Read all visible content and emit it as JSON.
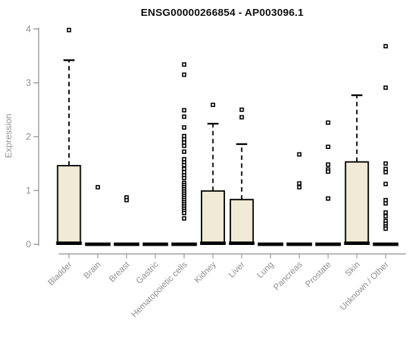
{
  "chart_data": {
    "type": "box",
    "title": "ENSG00000266854 - AP003096.1",
    "ylabel": "Expression",
    "xlabel": "",
    "ylim": [
      0,
      4
    ],
    "yticks": [
      0,
      1,
      2,
      3,
      4
    ],
    "grid": false,
    "legend": "none",
    "categories": [
      "Bladder",
      "Brain",
      "Breast",
      "Gastric",
      "Hematopoietic cells",
      "Kidney",
      "Liver",
      "Lung",
      "Pancreas",
      "Prostate",
      "Skin",
      "Unknown / Other"
    ],
    "boxes": [
      {
        "category": "Bladder",
        "q1": 0,
        "median": 0.02,
        "q3": 1.46,
        "whisker_low": 0,
        "whisker_high": 3.42,
        "outliers": [
          3.98
        ]
      },
      {
        "category": "Brain",
        "q1": 0,
        "median": 0,
        "q3": 0,
        "whisker_low": 0,
        "whisker_high": 0,
        "outliers": [
          1.06
        ]
      },
      {
        "category": "Breast",
        "q1": 0,
        "median": 0,
        "q3": 0,
        "whisker_low": 0,
        "whisker_high": 0,
        "outliers": [
          0.87,
          0.82
        ]
      },
      {
        "category": "Gastric",
        "q1": 0,
        "median": 0,
        "q3": 0,
        "whisker_low": 0,
        "whisker_high": 0,
        "outliers": []
      },
      {
        "category": "Hematopoietic cells",
        "q1": 0,
        "median": 0,
        "q3": 0,
        "whisker_low": 0,
        "whisker_high": 0,
        "outliers": [
          3.34,
          3.15,
          2.49,
          2.37,
          2.17,
          2.01,
          1.95,
          1.89,
          1.83,
          1.72,
          1.58,
          1.52,
          1.47,
          1.4,
          1.34,
          1.28,
          1.23,
          1.14,
          1.1,
          1.06,
          1.02,
          0.98,
          0.94,
          0.9,
          0.86,
          0.82,
          0.78,
          0.74,
          0.7,
          0.66,
          0.62,
          0.58,
          0.48
        ]
      },
      {
        "category": "Kidney",
        "q1": 0,
        "median": 0.02,
        "q3": 0.99,
        "whisker_low": 0,
        "whisker_high": 2.24,
        "outliers": [
          2.59
        ]
      },
      {
        "category": "Liver",
        "q1": 0,
        "median": 0.02,
        "q3": 0.83,
        "whisker_low": 0,
        "whisker_high": 1.86,
        "outliers": [
          2.5,
          2.36
        ]
      },
      {
        "category": "Lung",
        "q1": 0,
        "median": 0,
        "q3": 0,
        "whisker_low": 0,
        "whisker_high": 0,
        "outliers": []
      },
      {
        "category": "Pancreas",
        "q1": 0,
        "median": 0,
        "q3": 0,
        "whisker_low": 0,
        "whisker_high": 0,
        "outliers": [
          1.67,
          1.13,
          1.06
        ]
      },
      {
        "category": "Prostate",
        "q1": 0,
        "median": 0,
        "q3": 0,
        "whisker_low": 0,
        "whisker_high": 0,
        "outliers": [
          2.26,
          1.81,
          1.48,
          1.39,
          1.35,
          0.85
        ]
      },
      {
        "category": "Skin",
        "q1": 0,
        "median": 0.02,
        "q3": 1.53,
        "whisker_low": 0,
        "whisker_high": 2.77,
        "outliers": []
      },
      {
        "category": "Unknown / Other",
        "q1": 0,
        "median": 0,
        "q3": 0,
        "whisker_low": 0,
        "whisker_high": 0,
        "outliers": [
          3.68,
          2.91,
          1.5,
          1.4,
          1.34,
          1.12,
          0.82,
          0.76,
          0.59,
          0.52,
          0.43,
          0.38,
          0.33,
          0.29
        ]
      }
    ],
    "colors": {
      "box_fill": "#f0ead6",
      "box_border": "#000000",
      "median": "#000000",
      "whisker": "#000000",
      "outlier_fill": "#ffffff",
      "axis": "#9b9b9b",
      "tick_label": "#8f8f8f",
      "title": "#111111",
      "background": "#ffffff"
    }
  }
}
